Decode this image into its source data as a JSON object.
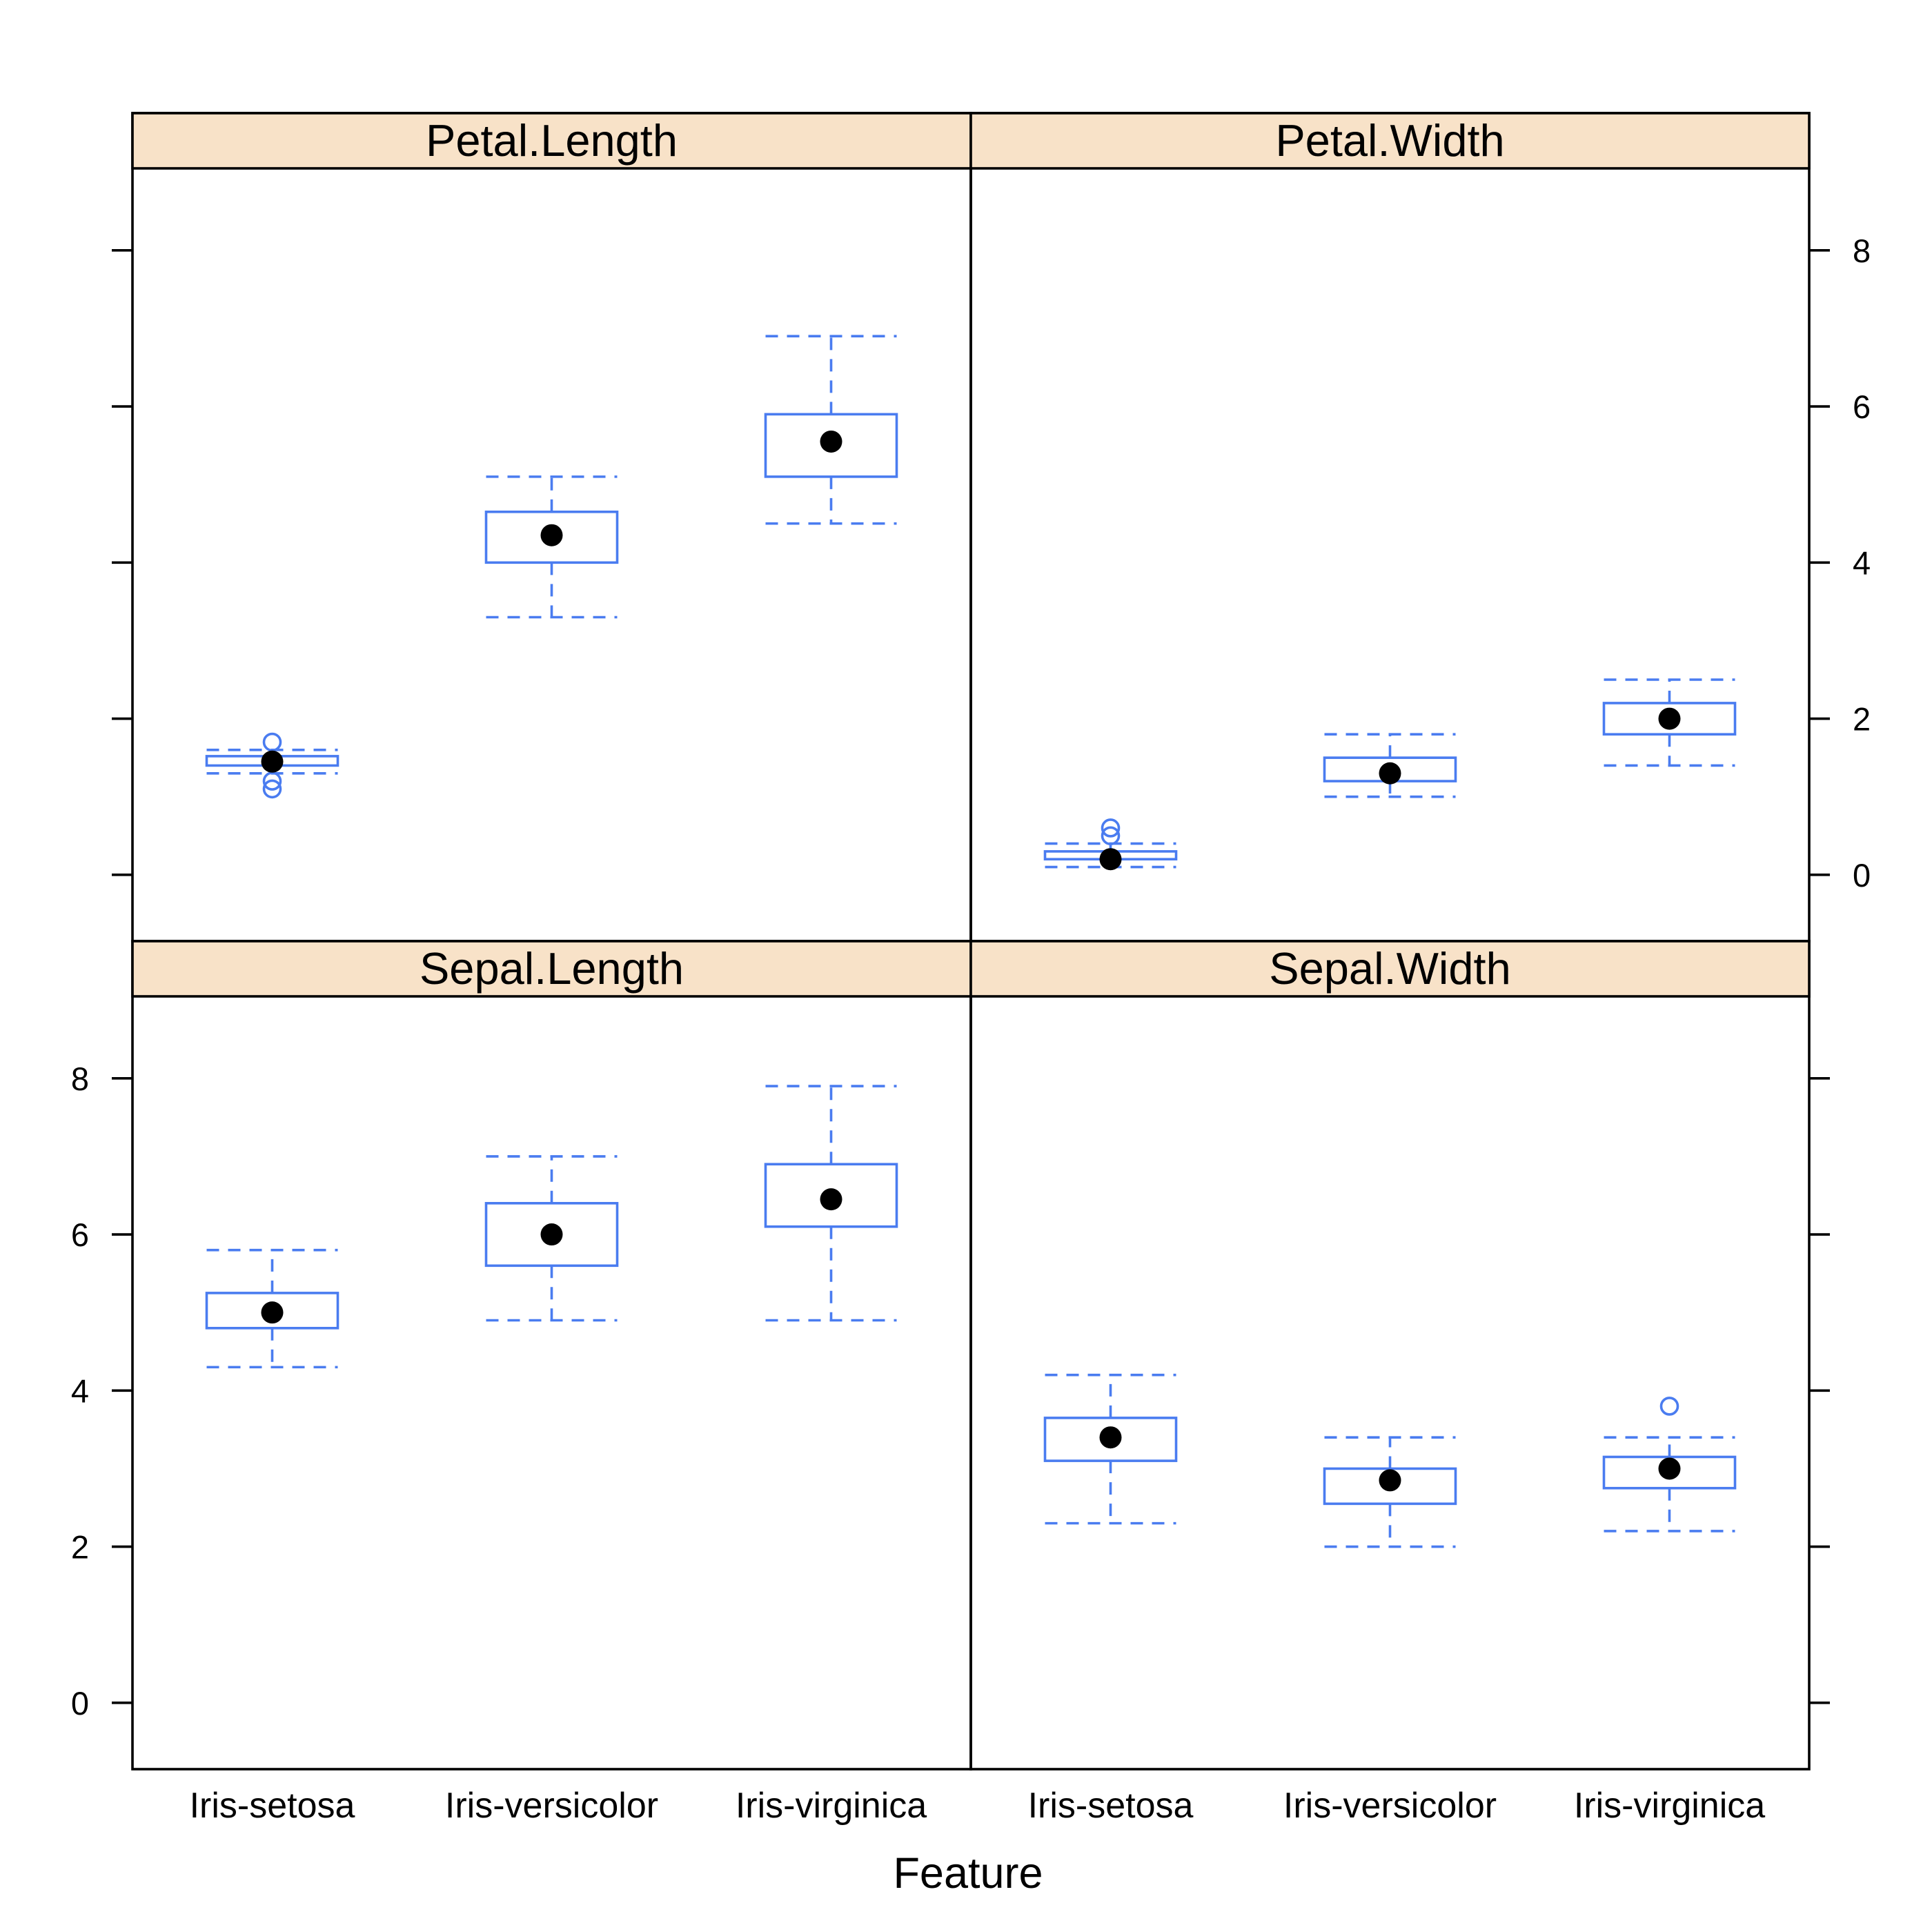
{
  "chart_data": {
    "type": "boxplot",
    "xlabel": "Feature",
    "ylim": [
      -0.85,
      9.05
    ],
    "y_ticks": [
      0,
      2,
      4,
      6,
      8
    ],
    "categories": [
      "Iris-setosa",
      "Iris-versicolor",
      "Iris-virginica"
    ],
    "grid": false,
    "colors": {
      "box": "#4a7cf0",
      "median": "#000000",
      "strip": "#f8e2c8",
      "frame": "#000000"
    },
    "panels": [
      {
        "title": "Petal.Length",
        "boxes": [
          {
            "category": "Iris-setosa",
            "min": 1.3,
            "q1": 1.4,
            "median": 1.45,
            "q3": 1.52,
            "max": 1.6,
            "outliers": [
              1.7,
              1.2,
              1.1
            ]
          },
          {
            "category": "Iris-versicolor",
            "min": 3.3,
            "q1": 4.0,
            "median": 4.35,
            "q3": 4.65,
            "max": 5.1,
            "outliers": []
          },
          {
            "category": "Iris-virginica",
            "min": 4.5,
            "q1": 5.1,
            "median": 5.55,
            "q3": 5.9,
            "max": 6.9,
            "outliers": []
          }
        ]
      },
      {
        "title": "Petal.Width",
        "boxes": [
          {
            "category": "Iris-setosa",
            "min": 0.1,
            "q1": 0.2,
            "median": 0.2,
            "q3": 0.3,
            "max": 0.4,
            "outliers": [
              0.6,
              0.5
            ]
          },
          {
            "category": "Iris-versicolor",
            "min": 1.0,
            "q1": 1.2,
            "median": 1.3,
            "q3": 1.5,
            "max": 1.8,
            "outliers": []
          },
          {
            "category": "Iris-virginica",
            "min": 1.4,
            "q1": 1.8,
            "median": 2.0,
            "q3": 2.2,
            "max": 2.5,
            "outliers": []
          }
        ]
      },
      {
        "title": "Sepal.Length",
        "boxes": [
          {
            "category": "Iris-setosa",
            "min": 4.3,
            "q1": 4.8,
            "median": 5.0,
            "q3": 5.25,
            "max": 5.8,
            "outliers": []
          },
          {
            "category": "Iris-versicolor",
            "min": 4.9,
            "q1": 5.6,
            "median": 6.0,
            "q3": 6.4,
            "max": 7.0,
            "outliers": []
          },
          {
            "category": "Iris-virginica",
            "min": 4.9,
            "q1": 6.1,
            "median": 6.45,
            "q3": 6.9,
            "max": 7.9,
            "outliers": []
          }
        ]
      },
      {
        "title": "Sepal.Width",
        "boxes": [
          {
            "category": "Iris-setosa",
            "min": 2.3,
            "q1": 3.1,
            "median": 3.4,
            "q3": 3.65,
            "max": 4.2,
            "outliers": []
          },
          {
            "category": "Iris-versicolor",
            "min": 2.0,
            "q1": 2.55,
            "median": 2.85,
            "q3": 3.0,
            "max": 3.4,
            "outliers": []
          },
          {
            "category": "Iris-virginica",
            "min": 2.2,
            "q1": 2.75,
            "median": 3.0,
            "q3": 3.15,
            "max": 3.4,
            "outliers": [
              3.8
            ]
          }
        ]
      }
    ]
  }
}
